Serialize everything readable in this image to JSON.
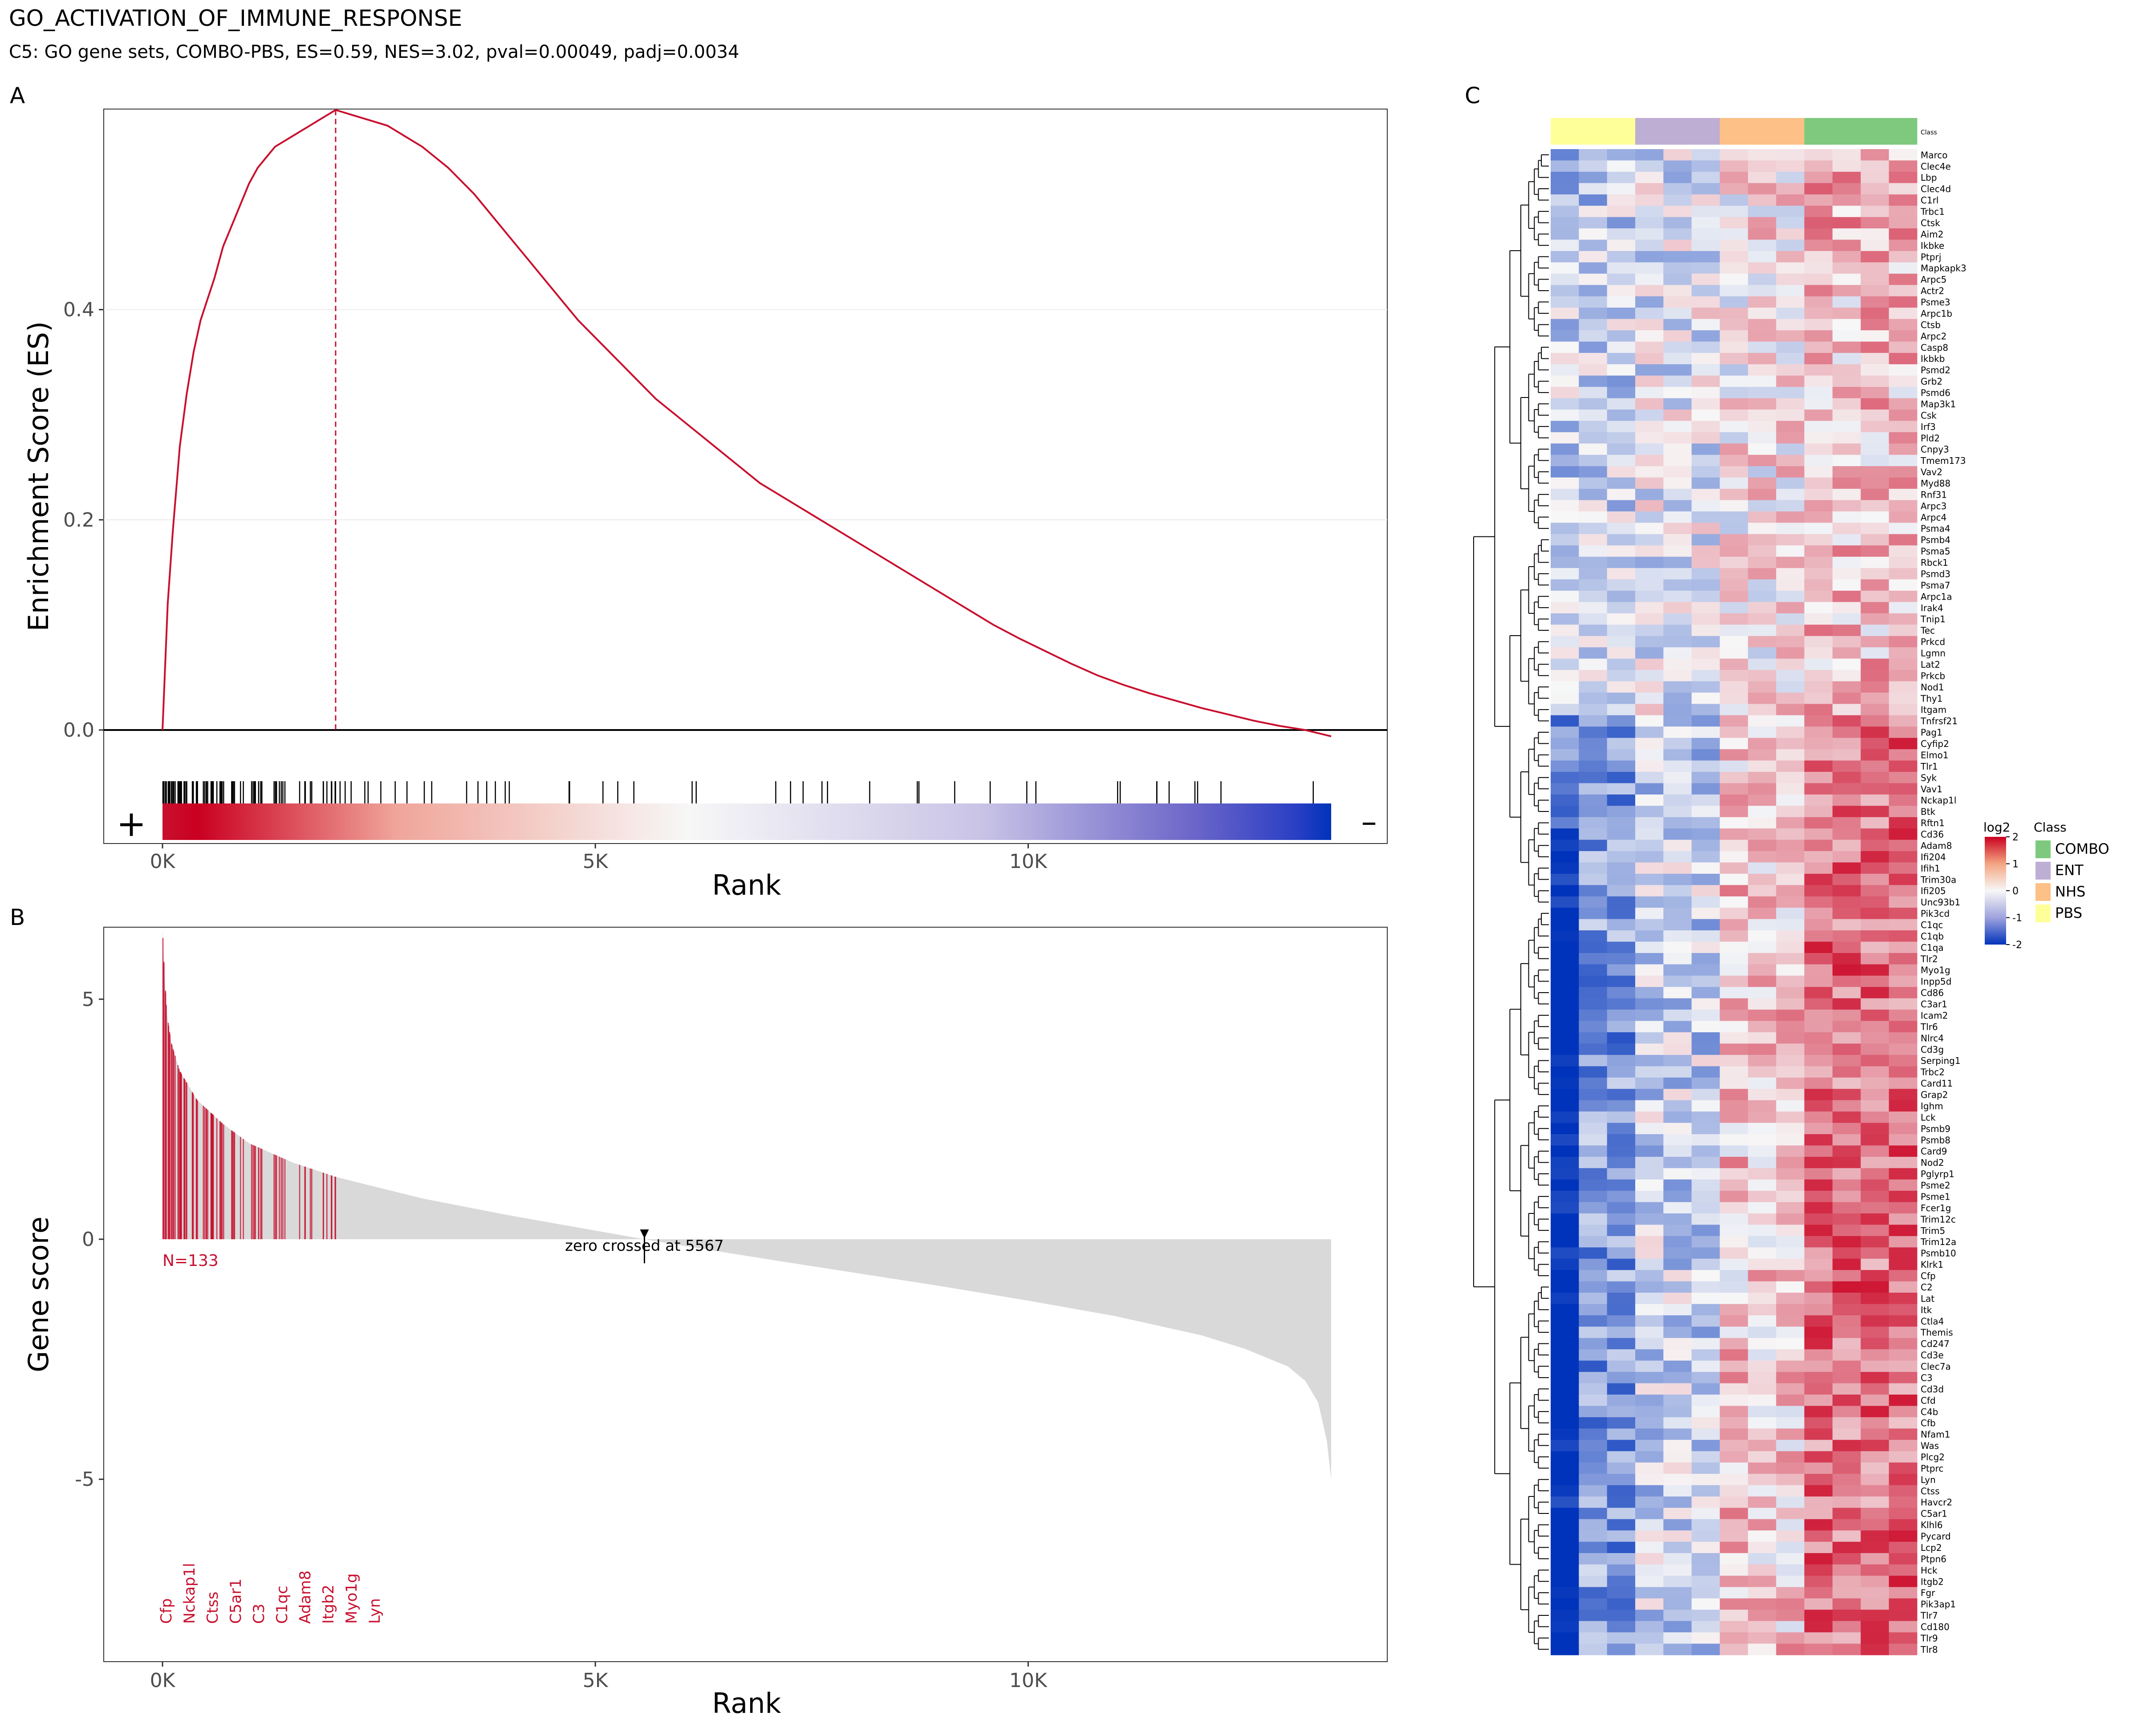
{
  "title": "GO_ACTIVATION_OF_IMMUNE_RESPONSE",
  "subtitle": "C5: GO gene sets, COMBO-PBS, ES=0.59, NES=3.02, pval=0.00049, padj=0.0034",
  "panels": {
    "a": "A",
    "b": "B",
    "c": "C"
  },
  "colors": {
    "curve": "#c8102e",
    "accent_red": "#ca0020",
    "blue": "#0033bb",
    "grey_fill": "#d9d9d9",
    "grid": "#ebebeb"
  },
  "chart_data": [
    {
      "type": "line",
      "panel": "A",
      "ylabel": "Enrichment Score (ES)",
      "xlabel": "Rank",
      "xlim": [
        0,
        13500
      ],
      "ylim": [
        -0.1,
        0.59
      ],
      "x_ticks": [
        0,
        5000,
        10000
      ],
      "x_tick_labels": [
        "0K",
        "5K",
        "10K"
      ],
      "y_ticks": [
        0.0,
        0.2,
        0.4
      ],
      "y_tick_labels": [
        "0.0",
        "0.2",
        "0.4"
      ],
      "leading_edge_rank": 2000,
      "es_max": 0.59,
      "rank_bar_labels": {
        "left": "+",
        "right": "–"
      },
      "es_curve": {
        "x": [
          0,
          60,
          120,
          200,
          280,
          360,
          440,
          520,
          600,
          700,
          800,
          900,
          1000,
          1100,
          1200,
          1300,
          1400,
          1500,
          1600,
          1700,
          1800,
          1900,
          2000,
          2200,
          2400,
          2600,
          2800,
          3000,
          3300,
          3600,
          3900,
          4200,
          4500,
          4800,
          5100,
          5400,
          5700,
          6000,
          6300,
          6600,
          6900,
          7200,
          7500,
          7800,
          8100,
          8400,
          8700,
          9000,
          9300,
          9600,
          9900,
          10200,
          10500,
          10800,
          11100,
          11400,
          11700,
          12000,
          12300,
          12600,
          12900,
          13200,
          13500
        ],
        "y": [
          0.0,
          0.12,
          0.19,
          0.27,
          0.32,
          0.36,
          0.39,
          0.41,
          0.43,
          0.46,
          0.48,
          0.5,
          0.52,
          0.535,
          0.545,
          0.555,
          0.56,
          0.565,
          0.57,
          0.575,
          0.58,
          0.585,
          0.59,
          0.585,
          0.58,
          0.575,
          0.565,
          0.555,
          0.535,
          0.51,
          0.48,
          0.45,
          0.42,
          0.39,
          0.365,
          0.34,
          0.315,
          0.295,
          0.275,
          0.255,
          0.235,
          0.22,
          0.205,
          0.19,
          0.175,
          0.16,
          0.145,
          0.13,
          0.115,
          0.1,
          0.087,
          0.075,
          0.063,
          0.052,
          0.043,
          0.035,
          0.028,
          0.021,
          0.015,
          0.009,
          0.004,
          0.0,
          -0.006
        ]
      }
    },
    {
      "type": "area",
      "panel": "B",
      "ylabel": "Gene score",
      "xlabel": "Rank",
      "xlim": [
        0,
        13500
      ],
      "ylim": [
        -8.8,
        6.5
      ],
      "x_ticks": [
        0,
        5000,
        10000
      ],
      "x_tick_labels": [
        "0K",
        "5K",
        "10K"
      ],
      "y_ticks": [
        5,
        0,
        -5
      ],
      "y_tick_labels": [
        "5",
        "0",
        "-5"
      ],
      "score_curve": {
        "x": [
          0,
          20,
          50,
          100,
          200,
          400,
          700,
          1000,
          1500,
          2000,
          3000,
          4000,
          5000,
          5567,
          6000,
          7000,
          8000,
          9000,
          10000,
          11000,
          12000,
          12500,
          13000,
          13200,
          13350,
          13450,
          13500
        ],
        "y": [
          6.5,
          5.6,
          4.7,
          4.1,
          3.5,
          2.9,
          2.4,
          2.0,
          1.6,
          1.3,
          0.85,
          0.5,
          0.18,
          0.0,
          -0.13,
          -0.42,
          -0.7,
          -0.98,
          -1.28,
          -1.6,
          -2.0,
          -2.28,
          -2.65,
          -2.95,
          -3.4,
          -4.2,
          -5.0
        ]
      },
      "gene_count_label": "N=133",
      "zero_cross_annotation": "zero crossed at 5567",
      "zero_cross_rank": 5567,
      "leading_genes": [
        "Cfp",
        "Nckap1l",
        "Ctss",
        "C5ar1",
        "C3",
        "C1qc",
        "Adam8",
        "Itgb2",
        "Myo1g",
        "Lyn"
      ]
    },
    {
      "type": "heatmap",
      "panel": "C",
      "legend_title": "log2",
      "scale_ticks": [
        "2",
        "1",
        "0",
        "-1",
        "-2"
      ],
      "class_legend_title": "Class",
      "annotation_label": "Class",
      "classes": [
        {
          "name": "COMBO",
          "color": "#7fc97f"
        },
        {
          "name": "ENT",
          "color": "#beaed4"
        },
        {
          "name": "NHS",
          "color": "#fdc086"
        },
        {
          "name": "PBS",
          "color": "#ffff99"
        }
      ],
      "column_classes": [
        "PBS",
        "PBS",
        "PBS",
        "ENT",
        "ENT",
        "ENT",
        "NHS",
        "NHS",
        "NHS",
        "COMBO",
        "COMBO",
        "COMBO",
        "COMBO"
      ],
      "genes": [
        "Marco",
        "Clec4e",
        "Lbp",
        "Clec4d",
        "C1rl",
        "Trbc1",
        "Ctsk",
        "Aim2",
        "Ikbke",
        "Ptprj",
        "Mapkapk3",
        "Arpc5",
        "Actr2",
        "Psme3",
        "Arpc1b",
        "Ctsb",
        "Arpc2",
        "Casp8",
        "Ikbkb",
        "Psmd2",
        "Grb2",
        "Psmd6",
        "Map3k1",
        "Csk",
        "Irf3",
        "Pld2",
        "Cnpy3",
        "Tmem173",
        "Vav2",
        "Myd88",
        "Rnf31",
        "Arpc3",
        "Arpc4",
        "Psma4",
        "Psmb4",
        "Psma5",
        "Rbck1",
        "Psmd3",
        "Psma7",
        "Arpc1a",
        "Irak4",
        "Tnip1",
        "Tec",
        "Prkcd",
        "Lgmn",
        "Lat2",
        "Prkcb",
        "Nod1",
        "Thy1",
        "Itgam",
        "Tnfrsf21",
        "Pag1",
        "Cyfip2",
        "Elmo1",
        "Tlr1",
        "Syk",
        "Vav1",
        "Nckap1l",
        "Btk",
        "Rftn1",
        "Cd36",
        "Adam8",
        "Ifi204",
        "Ifih1",
        "Trim30a",
        "Ifi205",
        "Unc93b1",
        "Pik3cd",
        "C1qc",
        "C1qb",
        "C1qa",
        "Tlr2",
        "Myo1g",
        "Inpp5d",
        "Cd86",
        "C3ar1",
        "Icam2",
        "Tlr6",
        "Nlrc4",
        "Cd3g",
        "Serping1",
        "Trbc2",
        "Card11",
        "Grap2",
        "Ighm",
        "Lck",
        "Psmb9",
        "Psmb8",
        "Card9",
        "Nod2",
        "Pglyrp1",
        "Psme2",
        "Psme1",
        "Fcer1g",
        "Trim12c",
        "Trim5",
        "Trim12a",
        "Psmb10",
        "Klrk1",
        "Cfp",
        "C2",
        "Lat",
        "Itk",
        "Ctla4",
        "Themis",
        "Cd247",
        "Cd3e",
        "Clec7a",
        "C3",
        "Cd3d",
        "Cfd",
        "C4b",
        "Cfb",
        "Nfam1",
        "Was",
        "Plcg2",
        "Ptprc",
        "Lyn",
        "Ctss",
        "Havcr2",
        "C5ar1",
        "Klhl6",
        "Pycard",
        "Lcp2",
        "Ptpn6",
        "Hck",
        "Itgb2",
        "Fgr",
        "Pik3ap1",
        "Tlr7",
        "Cd180",
        "Tlr9",
        "Tlr8"
      ]
    }
  ]
}
